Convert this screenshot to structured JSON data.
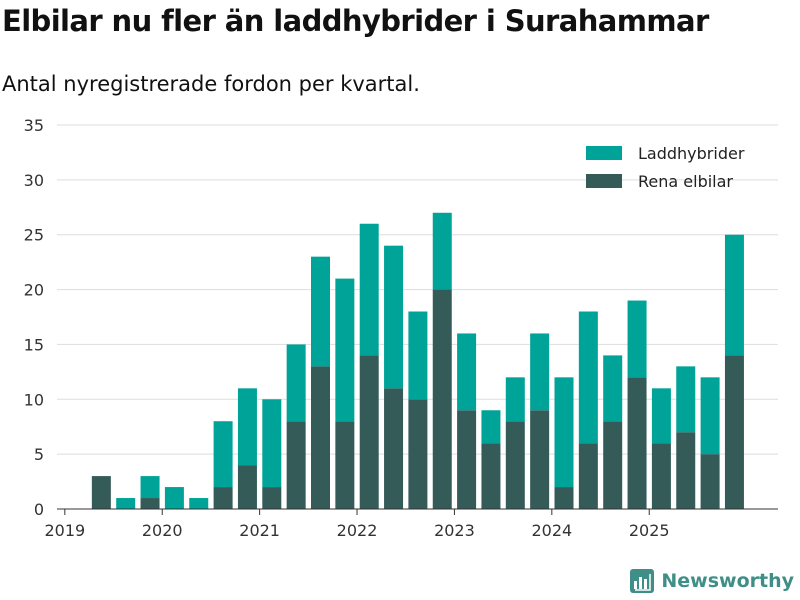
{
  "title": "Elbilar nu fler än laddhybrider i Surahammar",
  "subtitle": "Antal nyregistrerade fordon per kvartal.",
  "brand": "Newsworthy",
  "colors": {
    "laddhybrider": "#00a397",
    "rena_elbilar": "#345b58",
    "grid": "#dddddd",
    "axis": "#333333"
  },
  "chart_data": {
    "type": "bar",
    "stacked": true,
    "title": "Elbilar nu fler än laddhybrider i Surahammar",
    "subtitle": "Antal nyregistrerade fordon per kvartal.",
    "xlabel": "",
    "ylabel": "",
    "ylim": [
      0,
      35
    ],
    "yticks": [
      0,
      5,
      10,
      15,
      20,
      25,
      30,
      35
    ],
    "xtick_labels": [
      "2019",
      "2020",
      "2021",
      "2022",
      "2023",
      "2024",
      "2025"
    ],
    "categories": [
      "2019 Q1",
      "2019 Q2",
      "2019 Q3",
      "2019 Q4",
      "2020 Q1",
      "2020 Q2",
      "2020 Q3",
      "2020 Q4",
      "2021 Q1",
      "2021 Q2",
      "2021 Q3",
      "2021 Q4",
      "2022 Q1",
      "2022 Q2",
      "2022 Q3",
      "2022 Q4",
      "2023 Q1",
      "2023 Q2",
      "2023 Q3",
      "2023 Q4",
      "2024 Q1",
      "2024 Q2",
      "2024 Q3",
      "2024 Q4",
      "2025 Q1",
      "2025 Q2",
      "2025 Q3",
      "2025 Q4"
    ],
    "legend": [
      "Laddhybrider",
      "Rena elbilar"
    ],
    "legend_position": "top-right",
    "series": [
      {
        "name": "Rena elbilar",
        "values": [
          0,
          3,
          0,
          1,
          0,
          0,
          2,
          4,
          2,
          8,
          13,
          8,
          14,
          11,
          10,
          20,
          9,
          6,
          8,
          9,
          2,
          6,
          8,
          12,
          6,
          7,
          5,
          14
        ]
      },
      {
        "name": "Laddhybrider",
        "values": [
          0,
          0,
          1,
          2,
          2,
          1,
          6,
          7,
          8,
          7,
          10,
          13,
          12,
          13,
          8,
          7,
          7,
          3,
          4,
          7,
          10,
          12,
          6,
          7,
          5,
          6,
          7,
          11
        ]
      }
    ]
  }
}
